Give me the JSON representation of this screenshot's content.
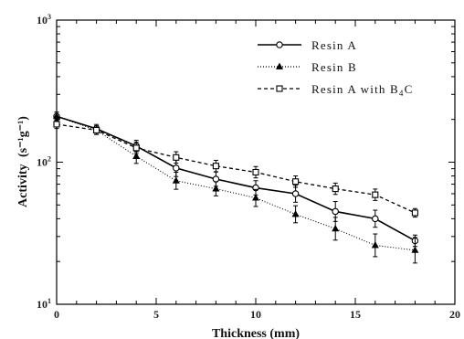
{
  "chart_data": {
    "type": "line",
    "xlabel": "Thickness  (mm)",
    "ylabel": "Activity",
    "ylabel_unit": "(s⁻¹g⁻¹)",
    "xlim": [
      0,
      20
    ],
    "ylim": [
      10,
      1000
    ],
    "yscale": "log",
    "x_ticks": [
      0,
      5,
      10,
      15,
      20
    ],
    "x_tick_labels": [
      "0",
      "5",
      "10",
      "15",
      "20"
    ],
    "y_ticks": [
      10,
      100,
      1000
    ],
    "y_tick_labels": [
      {
        "base": "10",
        "exp": "1"
      },
      {
        "base": "10",
        "exp": "2"
      },
      {
        "base": "10",
        "exp": "3"
      }
    ],
    "grid": false,
    "legend_position": "top-right",
    "series": [
      {
        "name": "Resin  A",
        "name_suffix": "",
        "marker": "open-circle",
        "line": "solid",
        "color": "#000000",
        "x": [
          0,
          2,
          4,
          6,
          8,
          10,
          12,
          14,
          16,
          18
        ],
        "y": [
          210,
          172,
          130,
          91,
          76,
          66,
          60,
          45,
          40,
          28
        ],
        "err": [
          0.03,
          0.03,
          0.04,
          0.06,
          0.05,
          0.05,
          0.06,
          0.07,
          0.06,
          0.04
        ]
      },
      {
        "name": "Resin  B",
        "name_suffix": "",
        "marker": "filled-triangle",
        "line": "dotted",
        "color": "#000000",
        "x": [
          0,
          2,
          4,
          6,
          8,
          10,
          12,
          14,
          16,
          18
        ],
        "y": [
          210,
          168,
          110,
          74,
          65,
          56,
          43,
          34,
          26,
          24
        ],
        "err": [
          0.03,
          0.03,
          0.05,
          0.06,
          0.05,
          0.06,
          0.06,
          0.08,
          0.08,
          0.09
        ]
      },
      {
        "name": "Resin  A  with  B",
        "name_sub": "4",
        "name_suffix": "C",
        "marker": "open-square",
        "line": "dashed",
        "color": "#000000",
        "x": [
          0,
          2,
          4,
          6,
          8,
          10,
          12,
          14,
          16,
          18
        ],
        "y": [
          185,
          168,
          126,
          108,
          94,
          85,
          73,
          65,
          59,
          44
        ],
        "err": [
          0.03,
          0.03,
          0.04,
          0.04,
          0.04,
          0.04,
          0.04,
          0.04,
          0.04,
          0.03
        ]
      }
    ]
  }
}
